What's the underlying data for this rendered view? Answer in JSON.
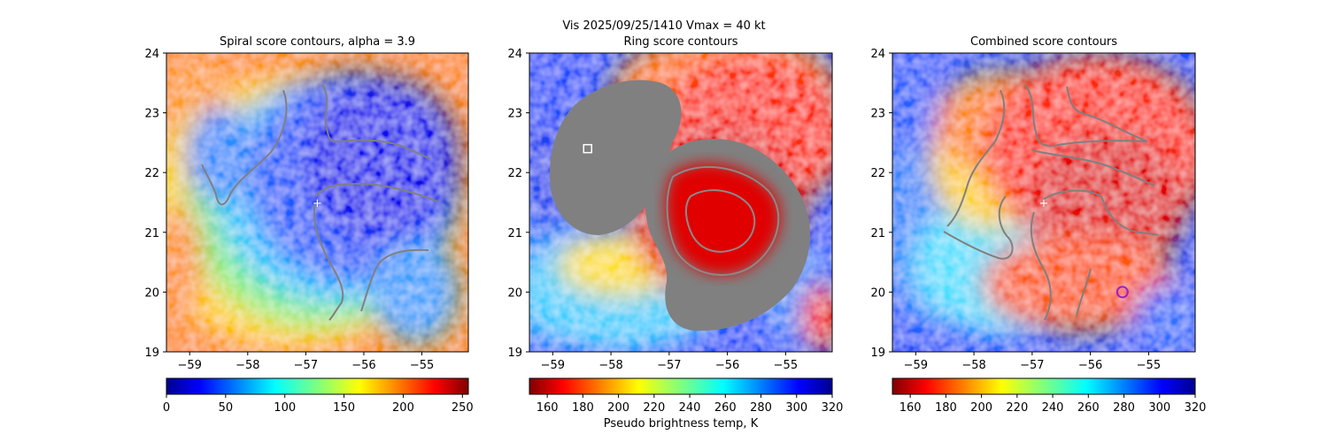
{
  "figure": {
    "suptitle": "Vis  2025/09/25/1410    Vmax = 40 kt",
    "colorbar_label": "Pseudo brightness temp, K"
  },
  "chart_data": [
    {
      "type": "heatmap",
      "title": "Spiral score contours, alpha =  3.9",
      "xlim": [
        -59.4,
        -54.2
      ],
      "ylim": [
        19,
        24
      ],
      "xticks": [
        -59,
        -58,
        -57,
        -56,
        -55
      ],
      "xtick_labels": [
        "−59",
        "−58",
        "−57",
        "−56",
        "−55"
      ],
      "yticks": [
        19,
        20,
        21,
        22,
        23,
        24
      ],
      "ytick_labels": [
        "19",
        "20",
        "21",
        "22",
        "23",
        "24"
      ],
      "colormap": "jet",
      "colorbar": {
        "ticks": [
          0,
          50,
          100,
          150,
          200,
          250
        ],
        "labels": [
          "0",
          "50",
          "100",
          "150",
          "200",
          "250"
        ],
        "range": [
          0,
          255
        ]
      },
      "center_marker": {
        "lon": -56.8,
        "lat": 21.5
      },
      "contour_color": "#808080"
    },
    {
      "type": "heatmap",
      "title": "Ring score contours",
      "xlim": [
        -59.4,
        -54.2
      ],
      "ylim": [
        19,
        24
      ],
      "xticks": [
        -59,
        -58,
        -57,
        -56,
        -55
      ],
      "xtick_labels": [
        "−59",
        "−58",
        "−57",
        "−56",
        "−55"
      ],
      "yticks": [
        19,
        20,
        21,
        22,
        23,
        24
      ],
      "ytick_labels": [
        "19",
        "20",
        "21",
        "22",
        "23",
        "24"
      ],
      "colormap": "jet_r",
      "colorbar": {
        "ticks": [
          160,
          180,
          200,
          220,
          240,
          260,
          280,
          300,
          320
        ],
        "labels": [
          "160",
          "180",
          "200",
          "220",
          "240",
          "260",
          "280",
          "300",
          "320"
        ],
        "range": [
          150,
          320
        ]
      },
      "square_marker": {
        "lon": -58.4,
        "lat": 22.4
      },
      "contour_color": "#808080"
    },
    {
      "type": "heatmap",
      "title": "Combined score contours",
      "xlim": [
        -59.4,
        -54.2
      ],
      "ylim": [
        19,
        24
      ],
      "xticks": [
        -59,
        -58,
        -57,
        -56,
        -55
      ],
      "xtick_labels": [
        "−59",
        "−58",
        "−57",
        "−56",
        "−55"
      ],
      "yticks": [
        19,
        20,
        21,
        22,
        23,
        24
      ],
      "ytick_labels": [
        "19",
        "20",
        "21",
        "22",
        "23",
        "24"
      ],
      "colormap": "jet_r",
      "colorbar": {
        "ticks": [
          160,
          180,
          200,
          220,
          240,
          260,
          280,
          300,
          320
        ],
        "labels": [
          "160",
          "180",
          "200",
          "220",
          "240",
          "260",
          "280",
          "300",
          "320"
        ],
        "range": [
          150,
          320
        ]
      },
      "center_marker": {
        "lon": -56.8,
        "lat": 21.5
      },
      "circle_marker": {
        "lon": -55.45,
        "lat": 20.0,
        "color": "#9b1fd1"
      },
      "contour_color": "#808080"
    }
  ]
}
